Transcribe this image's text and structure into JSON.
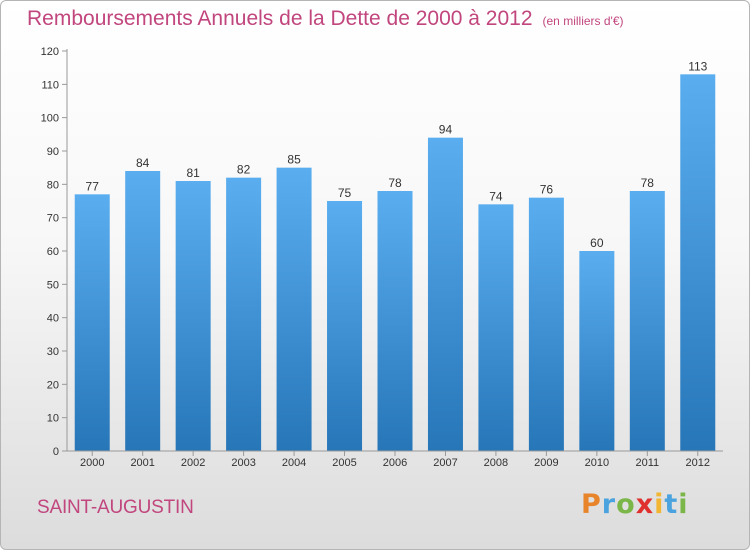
{
  "title": "Remboursements Annuels de la Dette de 2000 à 2012",
  "title_unit": "(en milliers d'€)",
  "town": "SAINT-AUGUSTIN",
  "logo": {
    "letters": [
      "P",
      "r",
      "o",
      "x",
      "i",
      "t",
      "i"
    ],
    "colors": [
      "#e8842a",
      "#4aa3de",
      "#7ab648",
      "#e0302e",
      "#f2b632",
      "#4aa3de",
      "#7ab648"
    ]
  },
  "colors": {
    "bar_light": "#5aaef0",
    "bar_dark": "#2676b8",
    "title": "#c1467e"
  },
  "chart_data": {
    "type": "bar",
    "title": "Remboursements Annuels de la Dette de 2000 à 2012",
    "categories": [
      "2000",
      "2001",
      "2002",
      "2003",
      "2004",
      "2005",
      "2006",
      "2007",
      "2008",
      "2009",
      "2010",
      "2011",
      "2012"
    ],
    "values": [
      77,
      84,
      81,
      82,
      85,
      75,
      78,
      94,
      74,
      76,
      60,
      78,
      113
    ],
    "ylim": [
      0,
      120
    ],
    "yticks": [
      0,
      10,
      20,
      30,
      40,
      50,
      60,
      70,
      80,
      90,
      100,
      110,
      120
    ],
    "grid": false
  }
}
